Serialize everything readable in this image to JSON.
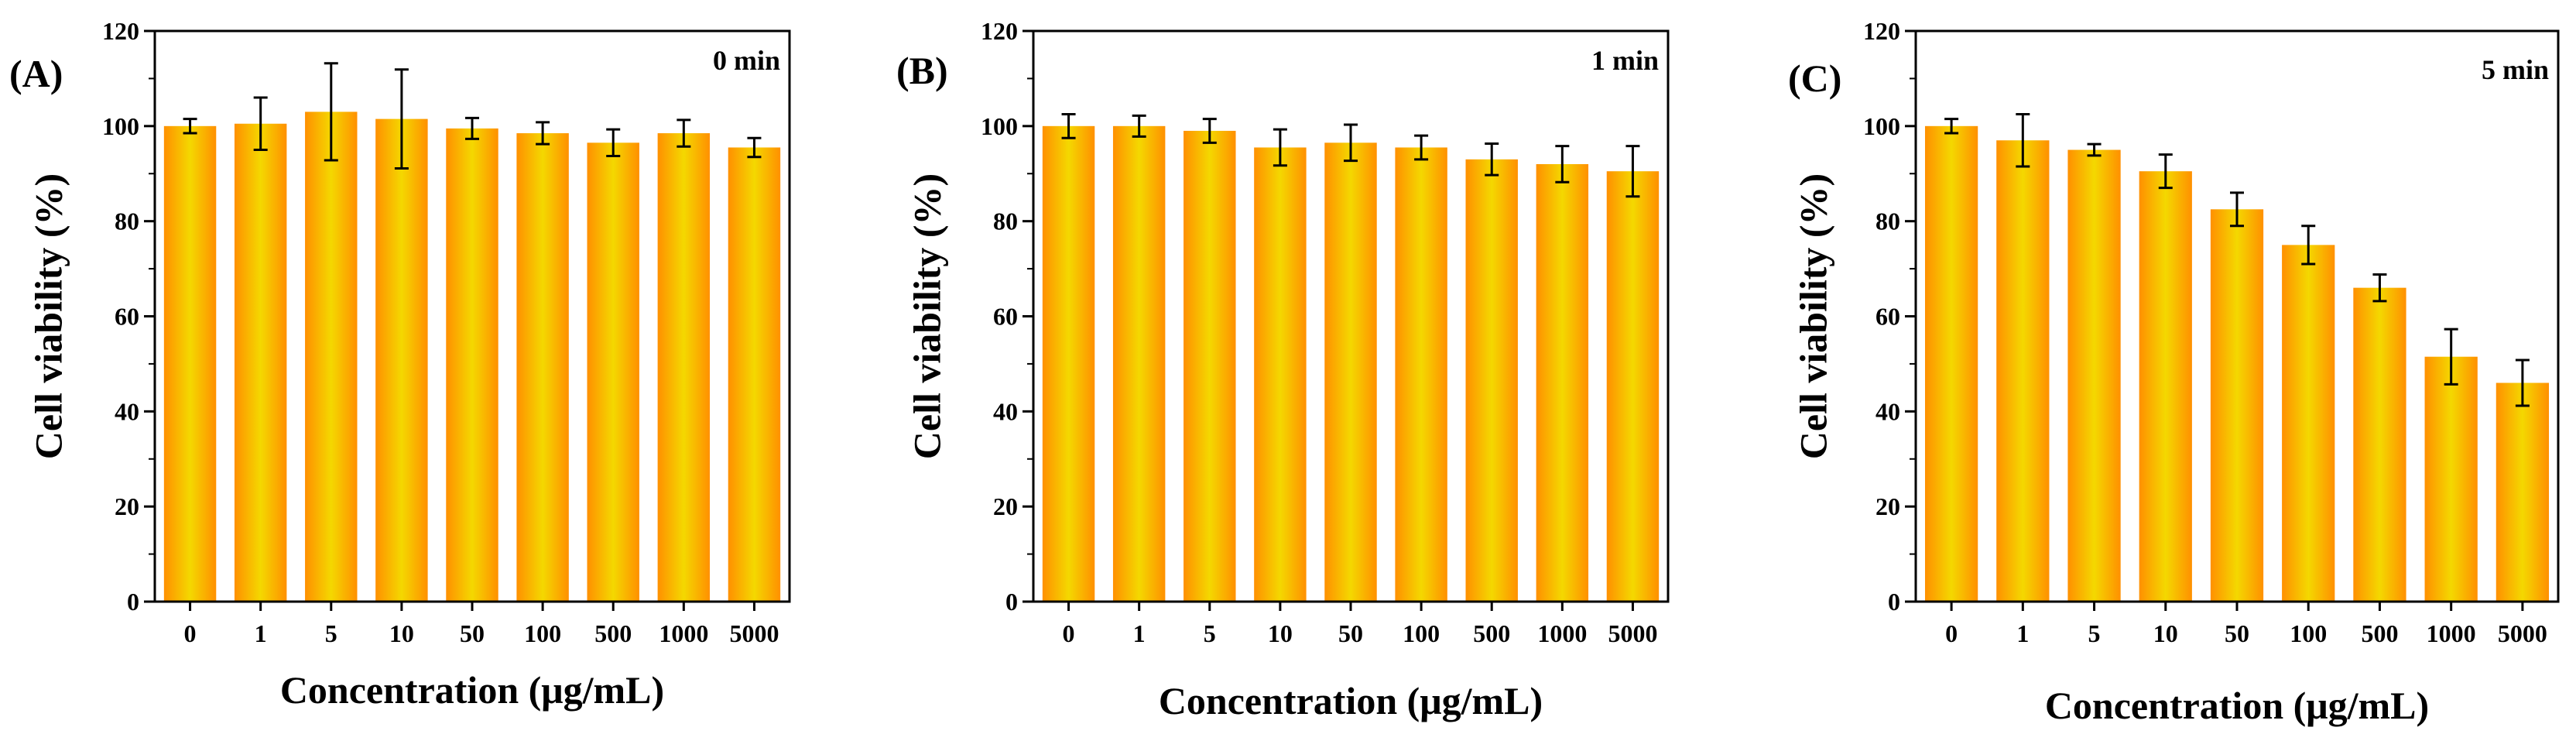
{
  "chart_data": [
    {
      "type": "bar",
      "panel_label": "(A)",
      "annotation": "0 min",
      "xlabel": "Concentration (μg/mL)",
      "ylabel": "Cell viability (%)",
      "categories": [
        "0",
        "1",
        "5",
        "10",
        "50",
        "100",
        "500",
        "1000",
        "5000"
      ],
      "values": [
        100,
        100.5,
        103,
        101.5,
        99.5,
        98.5,
        96.5,
        98.5,
        95.5
      ],
      "errors": [
        1.5,
        5.5,
        10.2,
        10.4,
        2.2,
        2.3,
        2.8,
        2.8,
        2.0
      ],
      "ylim": [
        0,
        120
      ],
      "yticks": [
        0,
        20,
        40,
        60,
        80,
        100,
        120
      ]
    },
    {
      "type": "bar",
      "panel_label": "(B)",
      "annotation": "1 min",
      "xlabel": "Concentration (μg/mL)",
      "ylabel": "Cell viability (%)",
      "categories": [
        "0",
        "1",
        "5",
        "10",
        "50",
        "100",
        "500",
        "1000",
        "5000"
      ],
      "values": [
        100,
        100,
        99,
        95.5,
        96.5,
        95.5,
        93,
        92,
        90.5
      ],
      "errors": [
        2.5,
        2.2,
        2.5,
        3.8,
        3.8,
        2.5,
        3.3,
        3.8,
        5.3
      ],
      "ylim": [
        0,
        120
      ],
      "yticks": [
        0,
        20,
        40,
        60,
        80,
        100,
        120
      ]
    },
    {
      "type": "bar",
      "panel_label": "(C)",
      "annotation": "5 min",
      "xlabel": "Concentration (μg/mL)",
      "ylabel": "Cell viability (%)",
      "categories": [
        "0",
        "1",
        "5",
        "10",
        "50",
        "100",
        "500",
        "1000",
        "5000"
      ],
      "values": [
        100,
        97,
        95,
        90.5,
        82.5,
        75,
        66,
        51.5,
        46
      ],
      "errors": [
        1.5,
        5.5,
        1.2,
        3.5,
        3.5,
        4.0,
        2.8,
        5.8,
        4.8
      ],
      "ylim": [
        0,
        120
      ],
      "yticks": [
        0,
        20,
        40,
        60,
        80,
        100,
        120
      ]
    }
  ],
  "colors": {
    "bar_center": "#f4d800",
    "bar_edge": "#ff9000",
    "error_bar": "#000000",
    "axis": "#000000"
  }
}
